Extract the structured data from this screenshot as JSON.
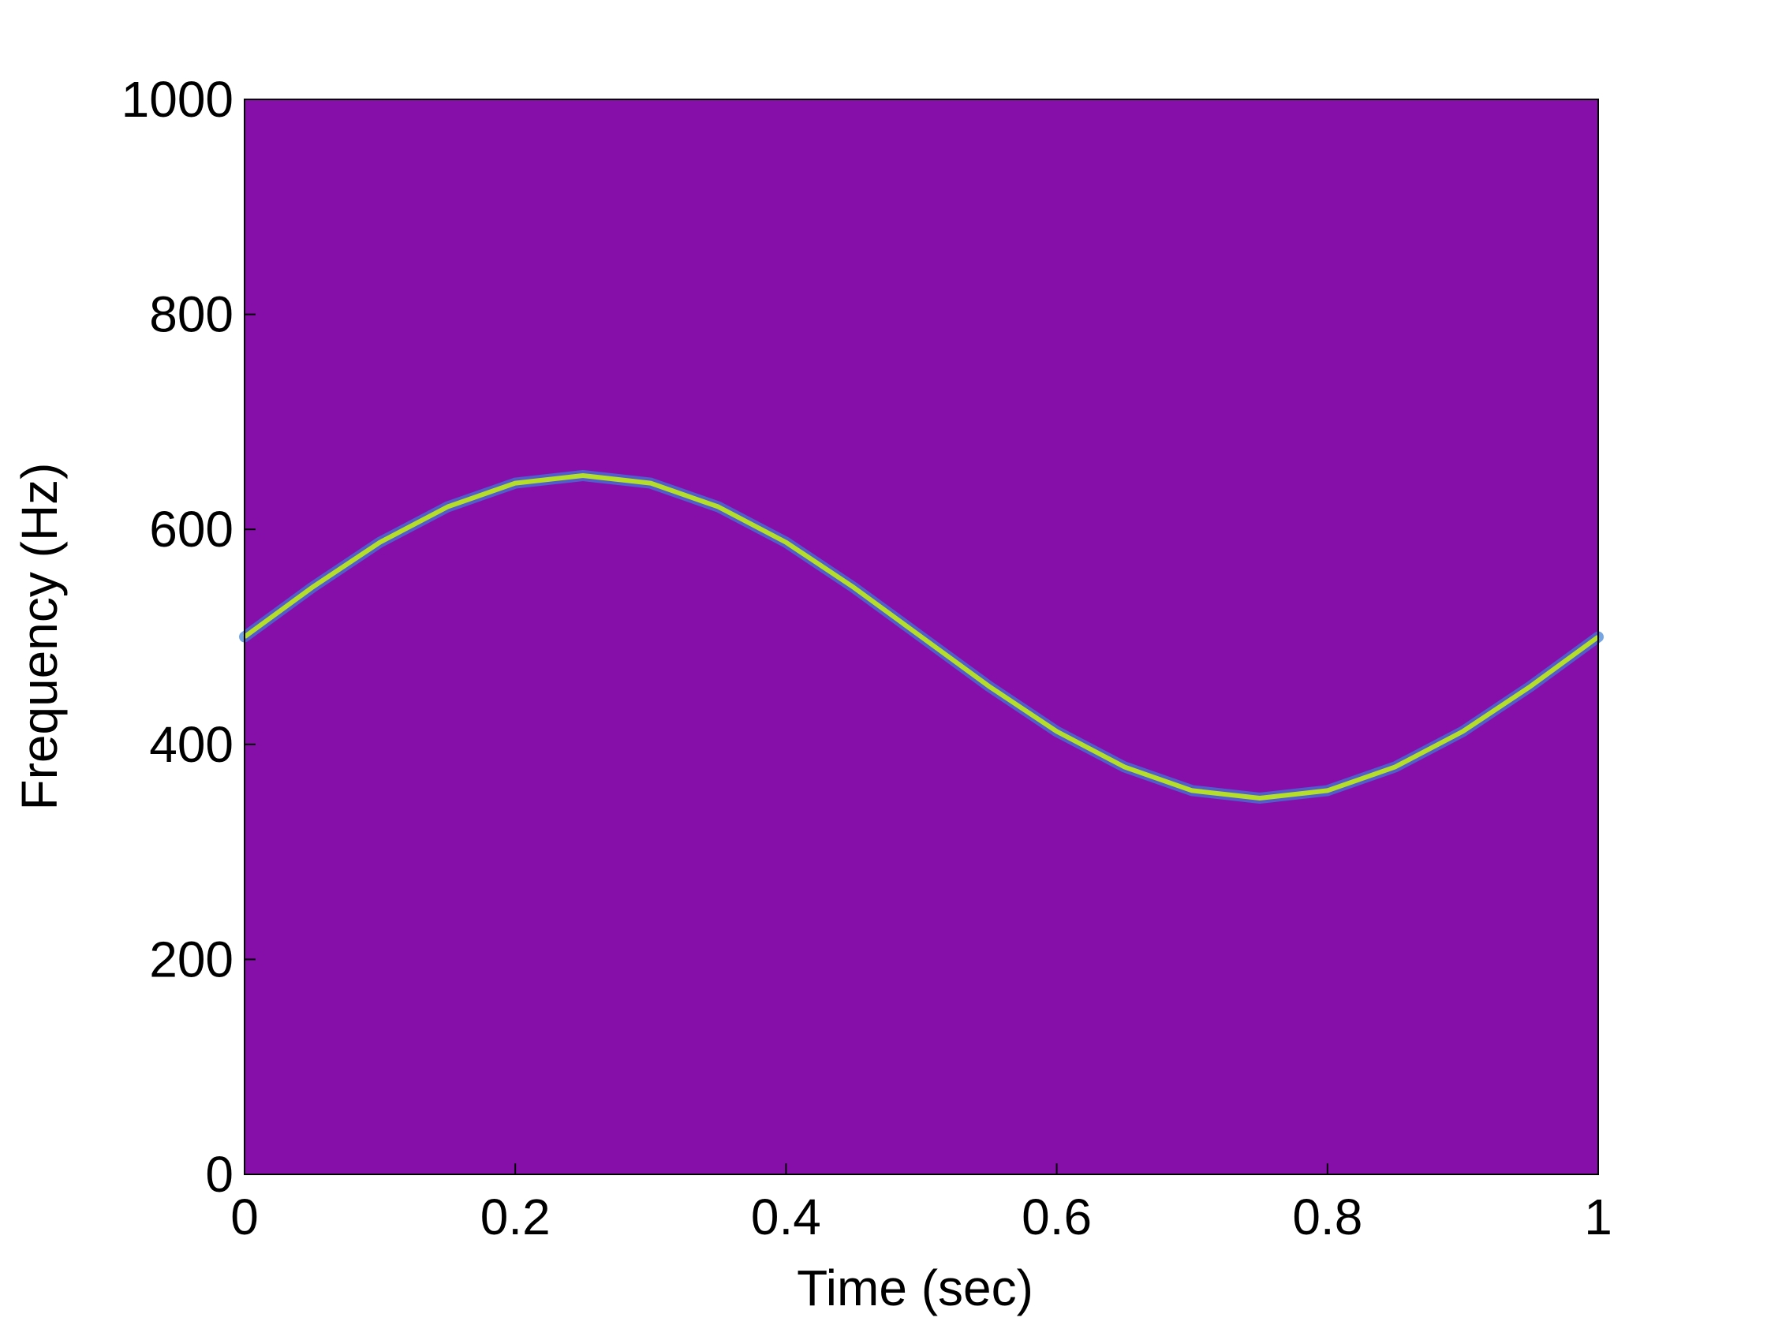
{
  "chart_data": {
    "type": "line",
    "x_label": "Time (sec)",
    "y_label": "Frequency (Hz)",
    "x": [
      0,
      0.05,
      0.1,
      0.15,
      0.2,
      0.25,
      0.3,
      0.35,
      0.4,
      0.45,
      0.5,
      0.55,
      0.6,
      0.65,
      0.7,
      0.75,
      0.8,
      0.85,
      0.9,
      0.95,
      1
    ],
    "series": [
      {
        "color": "#b5de2b",
        "values": [
          500,
          546,
          588,
          621,
          643,
          650,
          643,
          621,
          588,
          546,
          500,
          454,
          412,
          379,
          357,
          350,
          357,
          379,
          412,
          454,
          500
        ]
      }
    ],
    "plot_background": "#870fa9",
    "xlim": [
      0,
      1
    ],
    "xticks": [
      0,
      0.2,
      0.4,
      0.6,
      0.8,
      1
    ],
    "ylim": [
      0,
      1000
    ],
    "yticks": [
      0,
      200,
      400,
      600,
      800,
      1000
    ],
    "grid": false
  }
}
